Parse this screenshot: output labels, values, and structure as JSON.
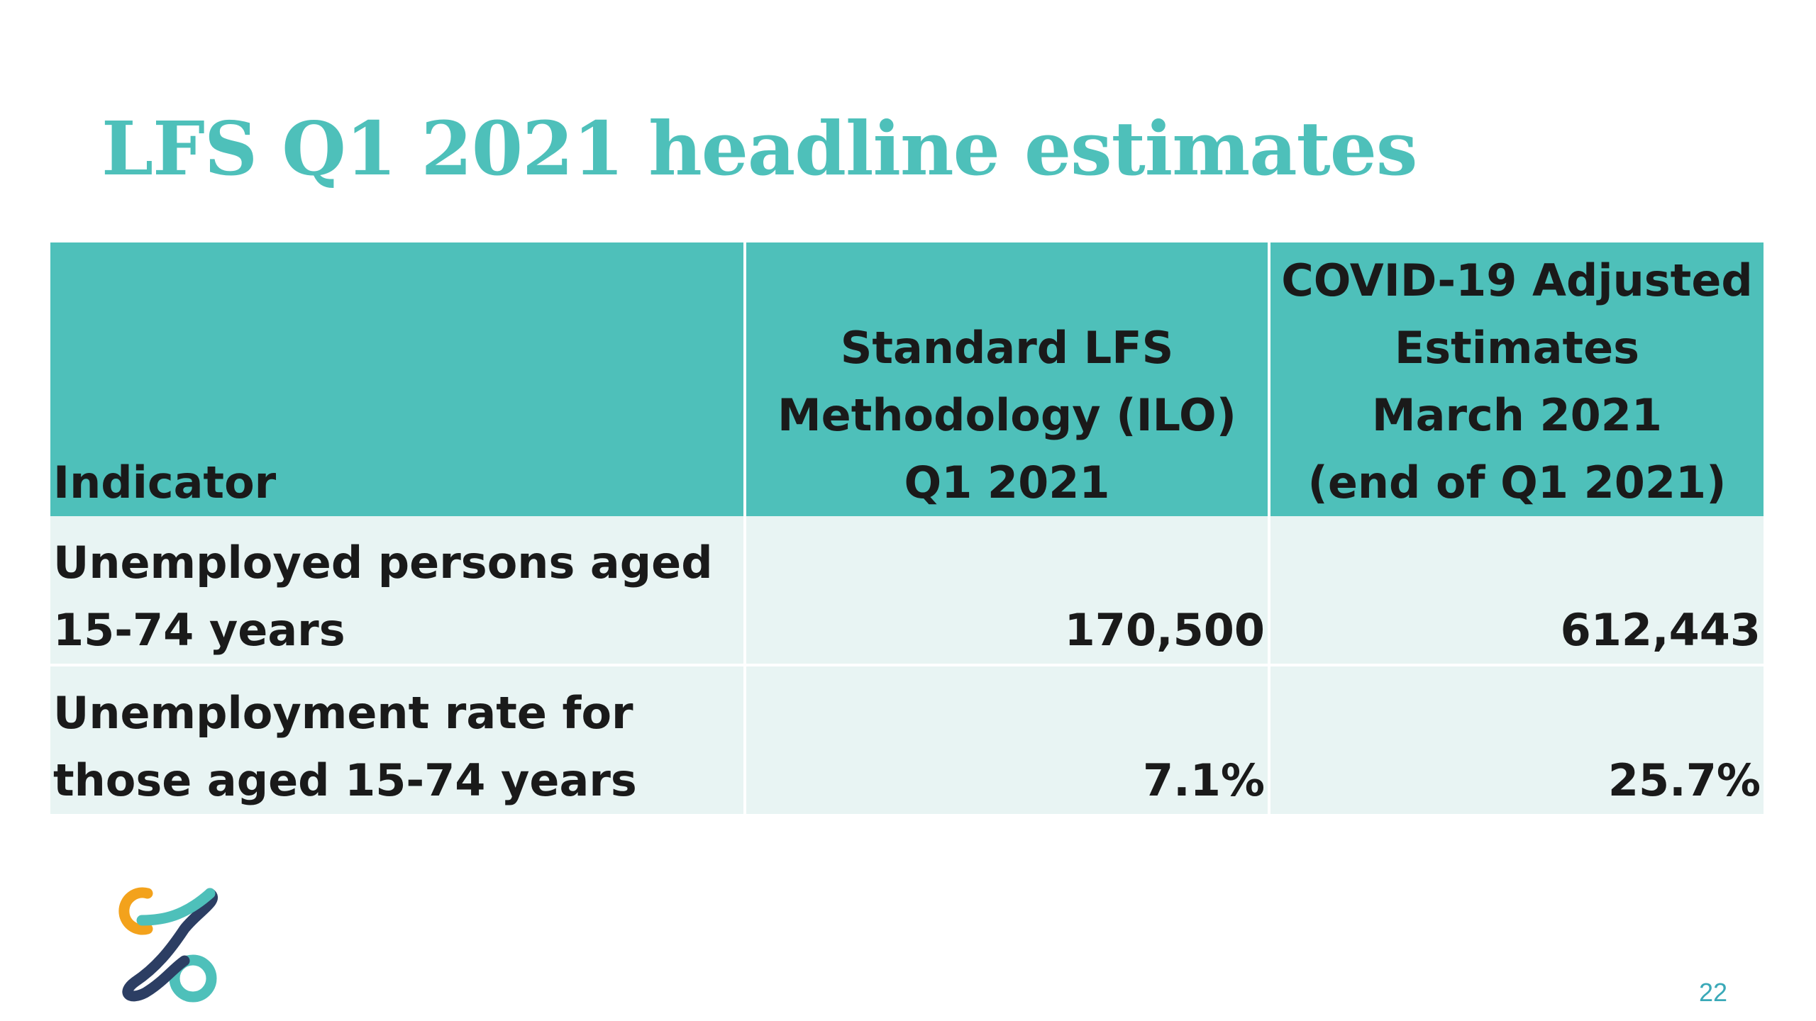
{
  "slide": {
    "title": "LFS Q1 2021 headline estimates",
    "page_number": "22",
    "accent_color": "#4ec0ba",
    "row_fill_color": "#e8f4f3",
    "logo_icon": "logo-icon"
  },
  "table": {
    "headers": [
      {
        "lines": [
          "Indicator"
        ]
      },
      {
        "lines": [
          "Standard LFS",
          "Methodology (ILO)",
          "Q1 2021"
        ]
      },
      {
        "lines": [
          "COVID-19 Adjusted",
          "Estimates",
          "March 2021",
          "(end of Q1 2021)"
        ]
      }
    ],
    "rows": [
      {
        "indicator_lines": [
          "Unemployed persons aged",
          "15-74 years"
        ],
        "standard": "170,500",
        "covid_adjusted": "612,443"
      },
      {
        "indicator_lines": [
          "Unemployment rate for",
          "those aged 15-74 years"
        ],
        "standard": "7.1%",
        "covid_adjusted": "25.7%"
      }
    ]
  }
}
